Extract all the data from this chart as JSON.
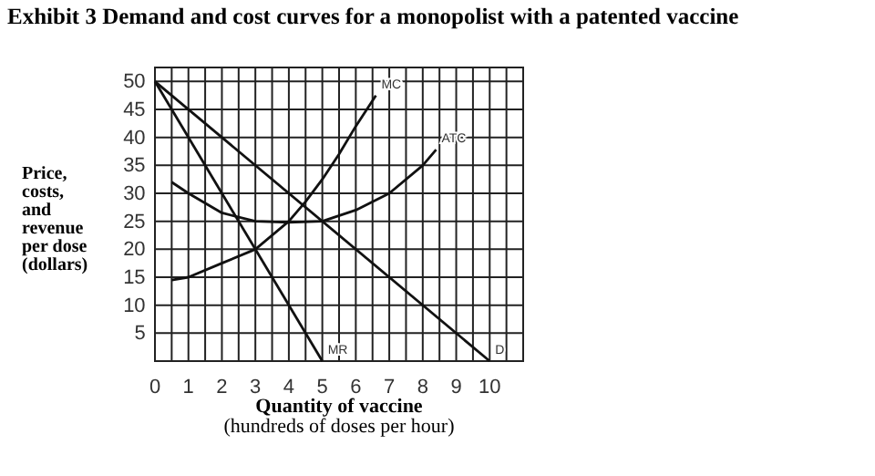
{
  "chart_data": {
    "type": "line",
    "title": "Exhibit 3 Demand and cost curves for a monopolist with a patented vaccine",
    "xlabel": "Quantity of vaccine\n(hundreds of doses per hour)",
    "ylabel": "Price,\ncosts,\nand\nrevenue\nper dose\n(dollars)",
    "xlim": [
      0,
      11
    ],
    "ylim": [
      0,
      52.5
    ],
    "xticks": [
      0,
      {
        "value": 0.5,
        "label": null
      },
      1,
      {
        "value": 1.5,
        "label": null
      },
      2,
      {
        "value": 2.5,
        "label": null
      },
      3,
      {
        "value": 3.5,
        "label": null
      },
      4,
      {
        "value": 4.5,
        "label": null
      },
      5,
      {
        "value": 5.5,
        "label": null
      },
      6,
      {
        "value": 6.5,
        "label": null
      },
      7,
      {
        "value": 7.5,
        "label": null
      },
      8,
      {
        "value": 8.5,
        "label": null
      },
      9,
      {
        "value": 9.5,
        "label": null
      },
      10,
      {
        "value": 10.5,
        "label": null
      }
    ],
    "yticks": [
      5,
      10,
      15,
      20,
      25,
      30,
      35,
      40,
      45,
      50
    ],
    "grid": true,
    "marker": "none",
    "line_style": "solid",
    "series": [
      {
        "name": "MC",
        "color": "#111111",
        "x": [
          0.5,
          1,
          2,
          3,
          4,
          4.5,
          5,
          5.5,
          6,
          6.6
        ],
        "values": [
          14.5,
          15,
          17.5,
          20,
          25,
          28.5,
          32.5,
          37,
          42,
          47.5
        ]
      },
      {
        "name": "ATC",
        "color": "#111111",
        "x": [
          0.5,
          1,
          2,
          3,
          4,
          5,
          6,
          7,
          8,
          8.4
        ],
        "values": [
          32,
          30,
          26.5,
          25,
          24.8,
          25,
          27,
          30,
          35,
          37.8
        ]
      },
      {
        "name": "MR",
        "color": "#111111",
        "x": [
          0,
          5
        ],
        "values": [
          50,
          0
        ]
      },
      {
        "name": "D",
        "color": "#111111",
        "x": [
          0,
          10
        ],
        "values": [
          50,
          0
        ]
      }
    ]
  }
}
